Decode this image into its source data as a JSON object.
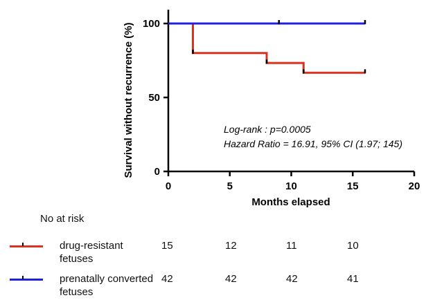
{
  "chart_data": {
    "type": "line",
    "subtype": "kaplan-meier",
    "xlabel": "Months elapsed",
    "ylabel": "Survival without recurrence (%)",
    "xlim": [
      0,
      20
    ],
    "ylim": [
      0,
      100
    ],
    "xticks": [
      0,
      5,
      10,
      15,
      20
    ],
    "yticks": [
      0,
      50,
      100
    ],
    "grid": false,
    "series": [
      {
        "name": "drug-resistant fetuses",
        "color": "#d9321f",
        "steps": [
          [
            0,
            100
          ],
          [
            2,
            80
          ],
          [
            8,
            73.3
          ],
          [
            11,
            66.7
          ],
          [
            16,
            66.7
          ]
        ],
        "censored": [
          [
            2,
            80
          ],
          [
            8,
            73.3
          ],
          [
            11,
            66.7
          ],
          [
            16,
            66.7
          ]
        ]
      },
      {
        "name": "prenatally converted fetuses",
        "color": "#1f1fe0",
        "steps": [
          [
            0,
            100
          ],
          [
            16,
            100
          ]
        ],
        "censored": [
          [
            9,
            100
          ],
          [
            16,
            100
          ]
        ]
      }
    ],
    "annotations": [
      "Log-rank : p=0.0005",
      "Hazard Ratio = 16.91, 95% CI (1.97; 145)"
    ]
  },
  "risk_table": {
    "title": "No at risk",
    "times": [
      0,
      5,
      10,
      15
    ],
    "rows": [
      {
        "label": "drug-resistant fetuses",
        "color": "#d9321f",
        "values": [
          "15",
          "12",
          "11",
          "10"
        ]
      },
      {
        "label": "prenatally converted fetuses",
        "color": "#1f1fe0",
        "values": [
          "42",
          "42",
          "42",
          "41"
        ]
      }
    ]
  }
}
